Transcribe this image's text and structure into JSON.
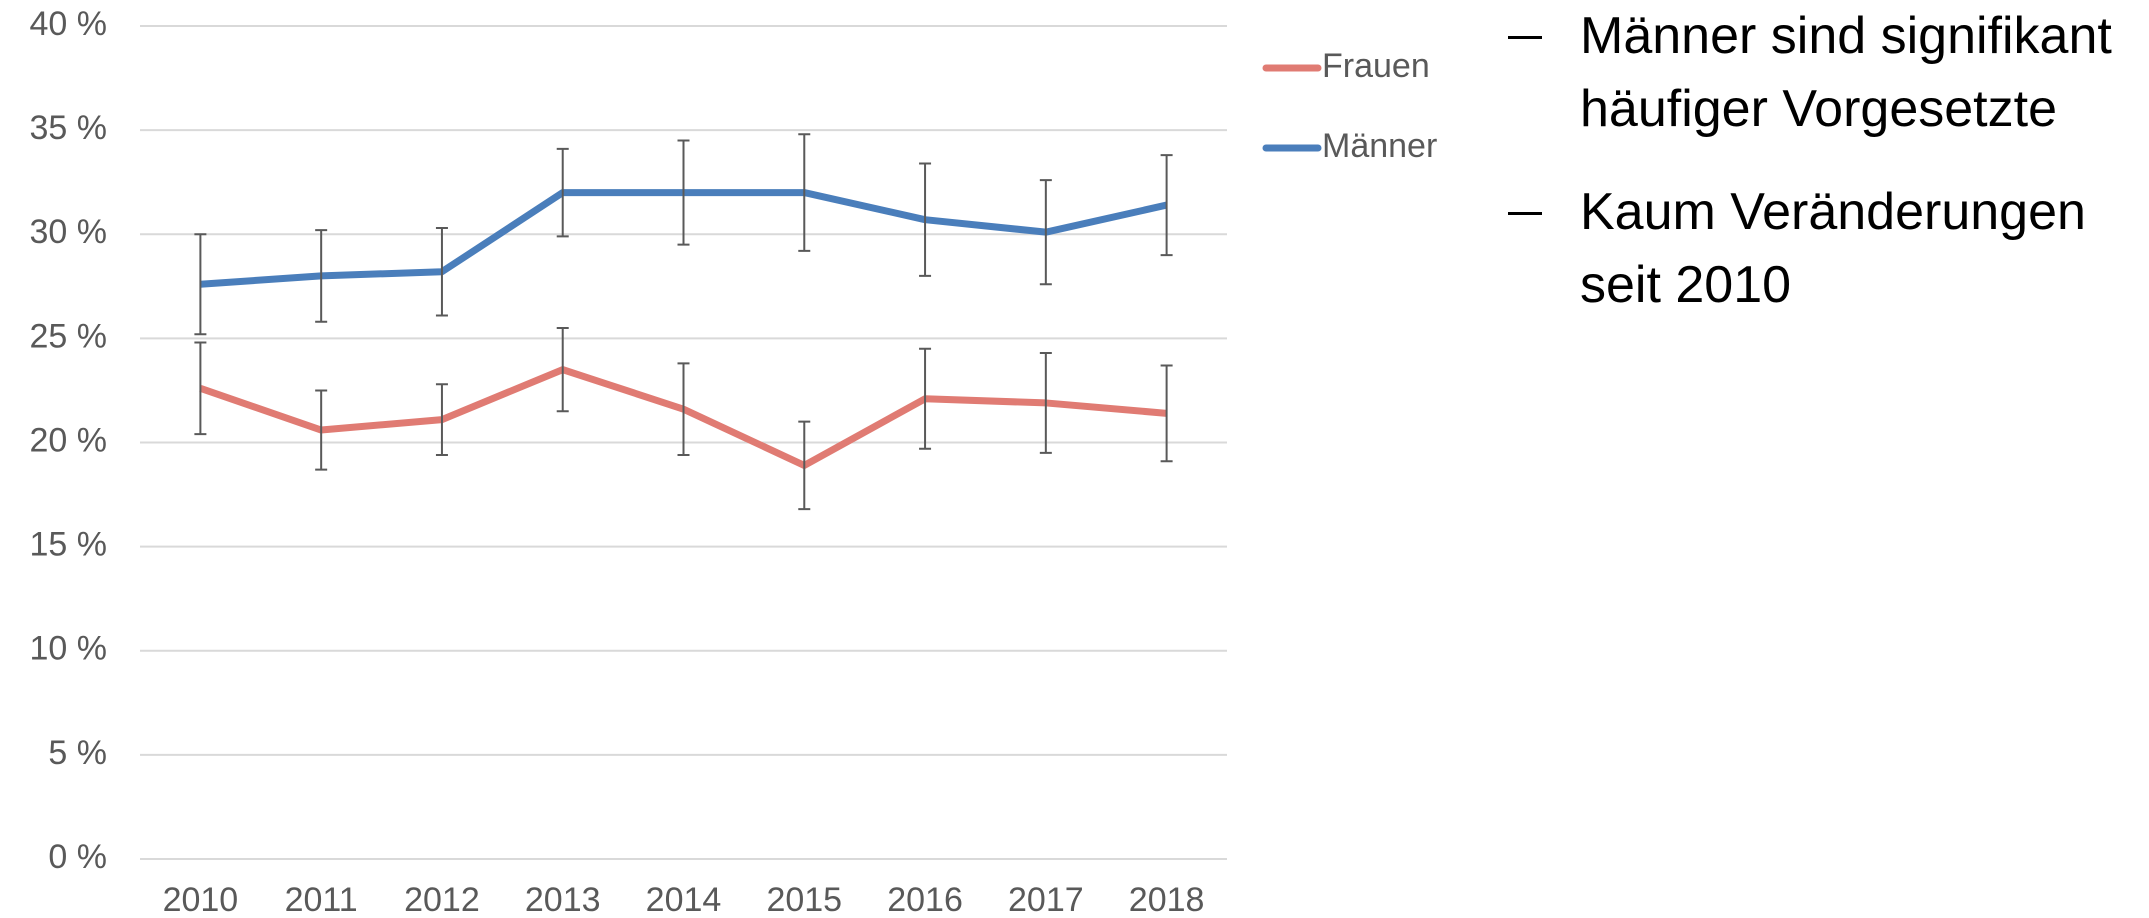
{
  "chart_data": {
    "type": "line",
    "categories": [
      "2010",
      "2011",
      "2012",
      "2013",
      "2014",
      "2015",
      "2016",
      "2017",
      "2018"
    ],
    "series": [
      {
        "name": "Frauen",
        "color": "#e07b73",
        "values": [
          22.6,
          20.6,
          21.1,
          23.5,
          21.6,
          18.9,
          22.1,
          21.9,
          21.4
        ],
        "errors": [
          2.2,
          1.9,
          1.7,
          2.0,
          2.2,
          2.1,
          2.4,
          2.4,
          2.3
        ]
      },
      {
        "name": "Männer",
        "color": "#4a7ebb",
        "values": [
          27.6,
          28.0,
          28.2,
          32.0,
          32.0,
          32.0,
          30.7,
          30.1,
          31.4
        ],
        "errors": [
          2.4,
          2.2,
          2.1,
          2.1,
          2.5,
          2.8,
          2.7,
          2.5,
          2.4
        ]
      }
    ],
    "ylim": [
      0,
      40
    ],
    "yticks": [
      {
        "value": 0,
        "label": "0 %"
      },
      {
        "value": 5,
        "label": "5 %"
      },
      {
        "value": 10,
        "label": "10 %"
      },
      {
        "value": 15,
        "label": "15 %"
      },
      {
        "value": 20,
        "label": "20 %"
      },
      {
        "value": 25,
        "label": "25 %"
      },
      {
        "value": 30,
        "label": "30 %"
      },
      {
        "value": 35,
        "label": "35 %"
      },
      {
        "value": 40,
        "label": "40 %"
      }
    ],
    "grid": true,
    "legend": "right",
    "annotations": [
      "Männer sind signifikant häufiger Vorgesetzte",
      "Kaum Veränderungen seit 2010"
    ]
  }
}
